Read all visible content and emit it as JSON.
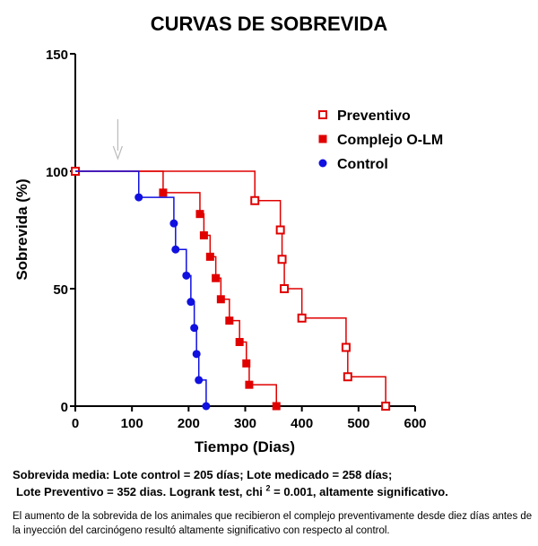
{
  "chart_data": {
    "type": "line",
    "subtype": "kaplan-meier-step",
    "title": "CURVAS DE SOBREVIDA",
    "xlabel": "Tiempo (Dias)",
    "ylabel": "Sobrevida (%)",
    "xlim": [
      0,
      600
    ],
    "ylim": [
      0,
      150
    ],
    "xticks": [
      0,
      100,
      200,
      300,
      400,
      500,
      600
    ],
    "yticks": [
      0,
      50,
      100,
      150
    ],
    "grid": false,
    "legend_position": "top-right",
    "arrow_annotation_x": 75,
    "series": [
      {
        "name": "Preventivo",
        "color": "#e00000",
        "marker": "square-open",
        "points": [
          [
            0,
            100
          ],
          [
            317,
            87.5
          ],
          [
            362,
            75
          ],
          [
            365,
            62.5
          ],
          [
            369,
            50
          ],
          [
            400,
            37.5
          ],
          [
            478,
            25
          ],
          [
            481,
            12.5
          ],
          [
            548,
            0
          ]
        ]
      },
      {
        "name": "Complejo O-LM",
        "color": "#e00000",
        "marker": "square-filled",
        "points": [
          [
            0,
            100
          ],
          [
            155,
            90.9
          ],
          [
            220,
            81.8
          ],
          [
            227,
            72.7
          ],
          [
            238,
            63.6
          ],
          [
            248,
            54.5
          ],
          [
            257,
            45.5
          ],
          [
            272,
            36.4
          ],
          [
            290,
            27.3
          ],
          [
            302,
            18.2
          ],
          [
            307,
            9.1
          ],
          [
            355,
            0
          ]
        ]
      },
      {
        "name": "Control",
        "color": "#1010e0",
        "marker": "circle-filled",
        "points": [
          [
            0,
            100
          ],
          [
            112,
            88.9
          ],
          [
            174,
            77.8
          ],
          [
            177,
            66.7
          ],
          [
            196,
            55.6
          ],
          [
            204,
            44.4
          ],
          [
            210,
            33.3
          ],
          [
            214,
            22.2
          ],
          [
            218,
            11.1
          ],
          [
            231,
            0
          ]
        ]
      }
    ]
  },
  "caption": {
    "line1": "Sobrevida media: Lote control = 205 días; Lote medicado = 258 días;",
    "line2_a": "Lote Preventivo =  352 dias. Logrank test, chi ",
    "line2_sup": "2",
    "line2_b": " = 0.001, altamente significativo."
  },
  "note": "El aumento de la sobrevida de los animales que recibieron el complejo preventivamente desde diez días antes de la inyección del carcinógeno resultó altamente significativo con respecto al control."
}
